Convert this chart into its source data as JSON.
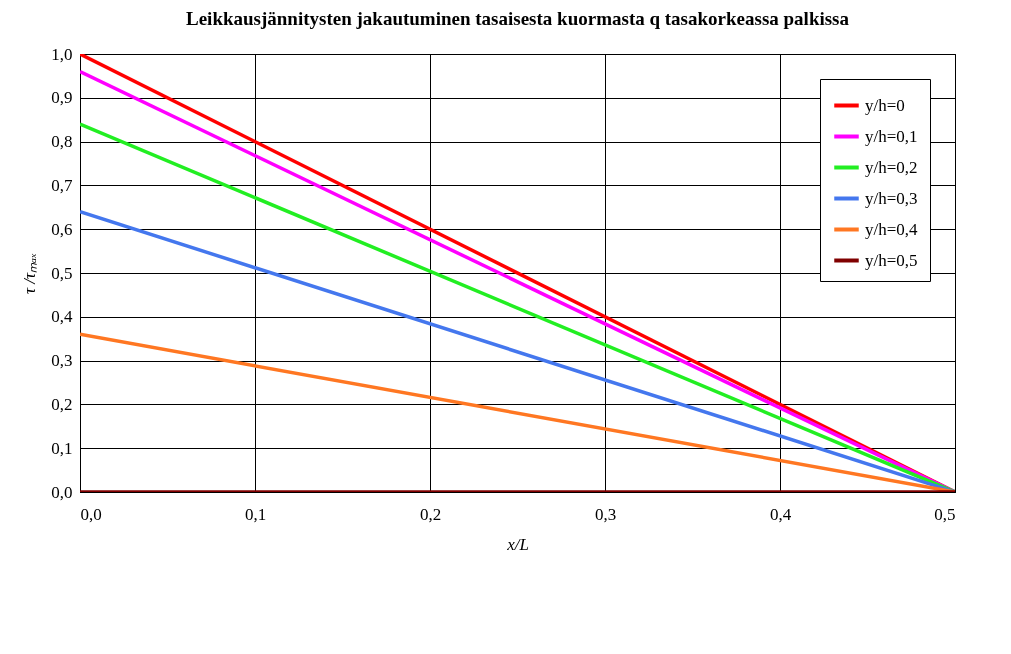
{
  "chart_data": {
    "type": "line",
    "title": "Leikkausjännitysten jakautuminen tasaisesta kuormasta q\ntasakorkeassa palkissa",
    "xlabel": "x/L",
    "ylabel": "τ /τₘₐₓ",
    "x": [
      0,
      0.5
    ],
    "series": [
      {
        "name": "y/h=0",
        "color": "#ff0000",
        "values": [
          1,
          0
        ]
      },
      {
        "name": "y/h=0,1",
        "color": "#ff00ff",
        "values": [
          0.96,
          0
        ]
      },
      {
        "name": "y/h=0,2",
        "color": "#22ee22",
        "values": [
          0.84,
          0
        ]
      },
      {
        "name": "y/h=0,3",
        "color": "#4477ee",
        "values": [
          0.64,
          0
        ]
      },
      {
        "name": "y/h=0,4",
        "color": "#ff7722",
        "values": [
          0.36,
          0
        ]
      },
      {
        "name": "y/h=0,5",
        "color": "#800000",
        "values": [
          0,
          0
        ]
      }
    ],
    "xlim": [
      0,
      0.5
    ],
    "xticks": [
      {
        "value": 0,
        "label": "0,0"
      },
      {
        "value": 0.1,
        "label": "0,1"
      },
      {
        "value": 0.2,
        "label": "0,2"
      },
      {
        "value": 0.3,
        "label": "0,3"
      },
      {
        "value": 0.4,
        "label": "0,4"
      },
      {
        "value": 0.5,
        "label": "0,5"
      }
    ],
    "ylim": [
      0,
      1
    ],
    "yticks": [
      {
        "value": 0,
        "label": "0,0"
      },
      {
        "value": 0.1,
        "label": "0,1"
      },
      {
        "value": 0.2,
        "label": "0,2"
      },
      {
        "value": 0.3,
        "label": "0,3"
      },
      {
        "value": 0.4,
        "label": "0,4"
      },
      {
        "value": 0.5,
        "label": "0,5"
      },
      {
        "value": 0.6,
        "label": "0,6"
      },
      {
        "value": 0.7,
        "label": "0,7"
      },
      {
        "value": 0.8,
        "label": "0,8"
      },
      {
        "value": 0.9,
        "label": "0,9"
      },
      {
        "value": 1,
        "label": "1,0"
      }
    ],
    "grid": true,
    "legend": "top right",
    "marker": "none",
    "line_style": "solid"
  }
}
